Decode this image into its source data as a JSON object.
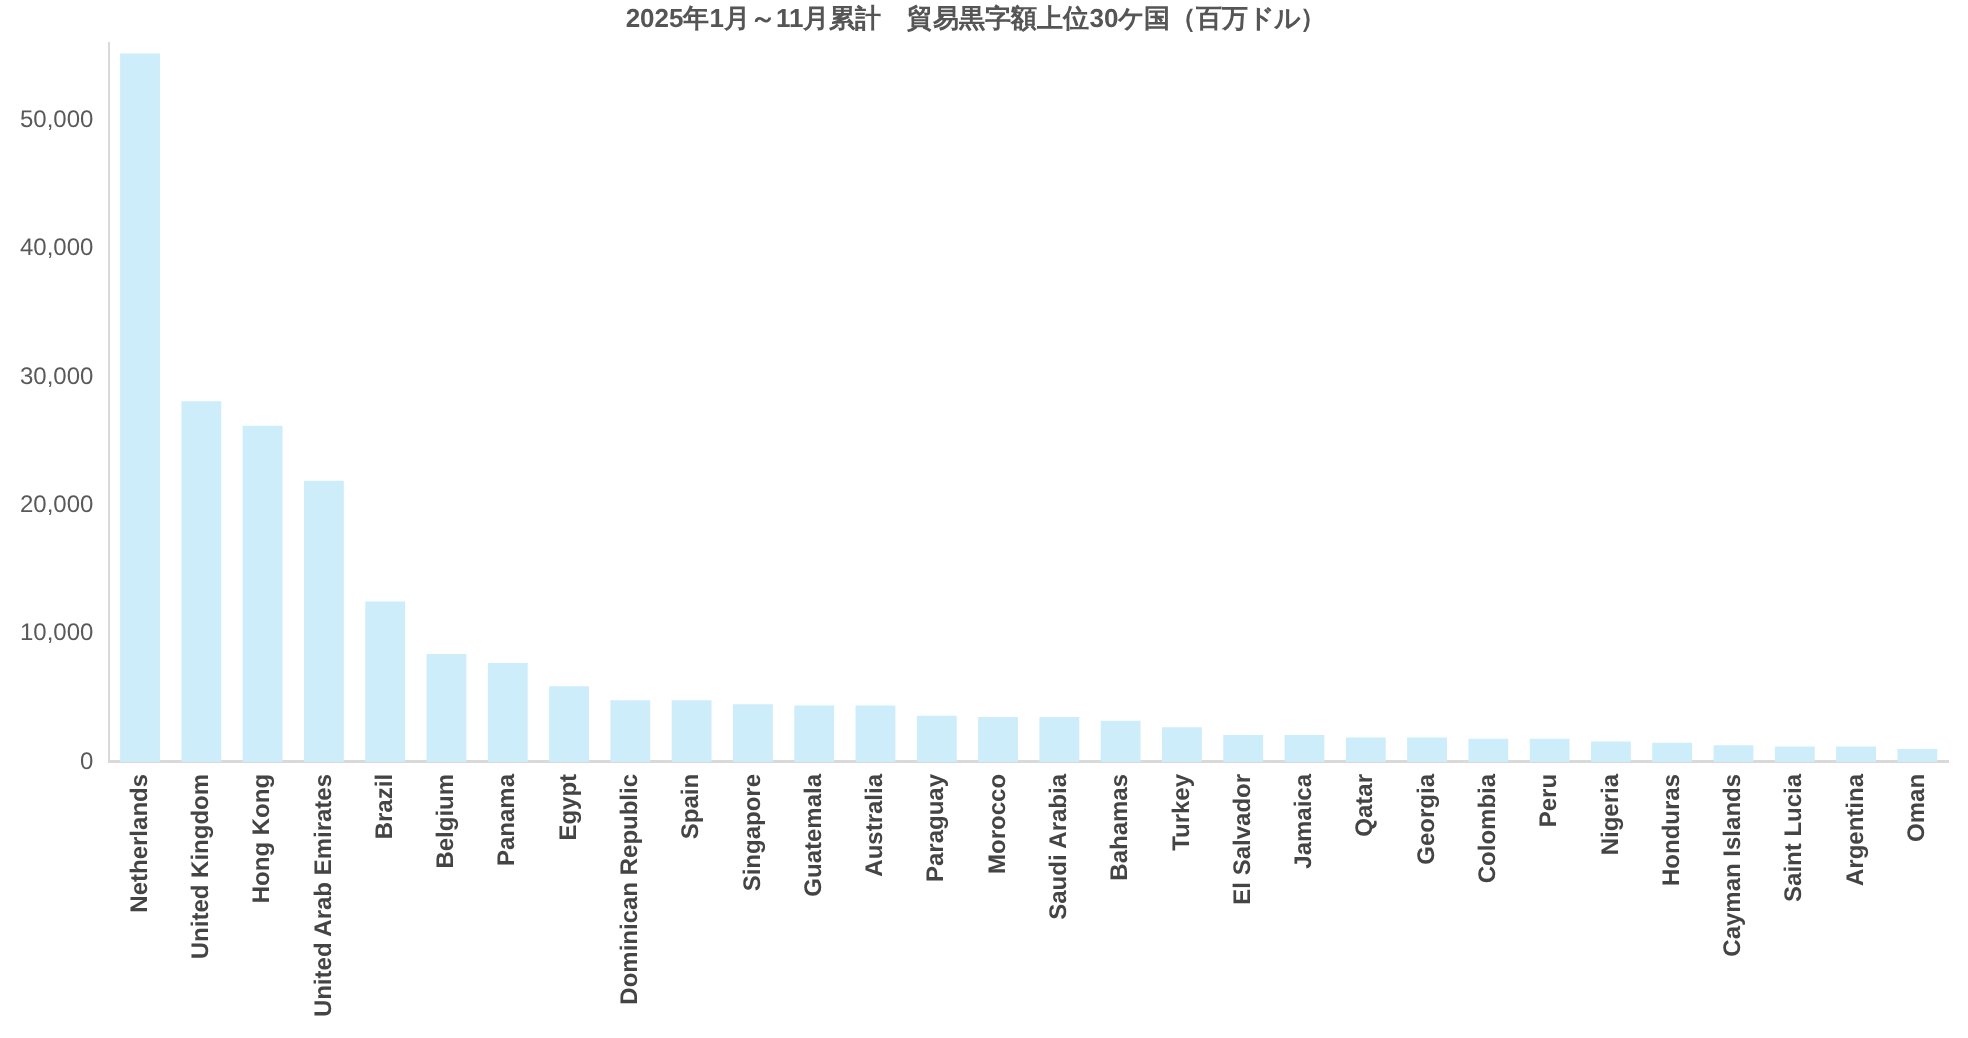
{
  "chart_data": {
    "type": "bar",
    "title": "2025年1月～11月累計　貿易黒字額上位30ケ国（百万ドル）",
    "categories": [
      "Netherlands",
      "United Kingdom",
      "Hong Kong",
      "United Arab Emirates",
      "Brazil",
      "Belgium",
      "Panama",
      "Egypt",
      "Dominican Republic",
      "Spain",
      "Singapore",
      "Guatemala",
      "Australia",
      "Paraguay",
      "Morocco",
      "Saudi Arabia",
      "Bahamas",
      "Turkey",
      "El Salvador",
      "Jamaica",
      "Qatar",
      "Georgia",
      "Colombia",
      "Peru",
      "Nigeria",
      "Honduras",
      "Cayman Islands",
      "Saint Lucia",
      "Argentina",
      "Oman"
    ],
    "values": [
      55200,
      28100,
      26200,
      21900,
      12500,
      8400,
      7700,
      5900,
      4800,
      4800,
      4500,
      4400,
      4400,
      3600,
      3500,
      3500,
      3200,
      2700,
      2100,
      2100,
      1900,
      1900,
      1800,
      1800,
      1600,
      1500,
      1300,
      1200,
      1200,
      1000
    ],
    "color": "#cdedfb",
    "ylim": [
      0,
      56000
    ],
    "yticks": [
      0,
      {
        "value": 10000,
        "label": "10,000"
      },
      {
        "value": 20000,
        "label": "20,000"
      },
      {
        "value": 30000,
        "label": "30,000"
      },
      {
        "value": 40000,
        "label": "40,000"
      },
      {
        "value": 50000,
        "label": "50,000"
      }
    ],
    "grid": false,
    "legend": false
  }
}
